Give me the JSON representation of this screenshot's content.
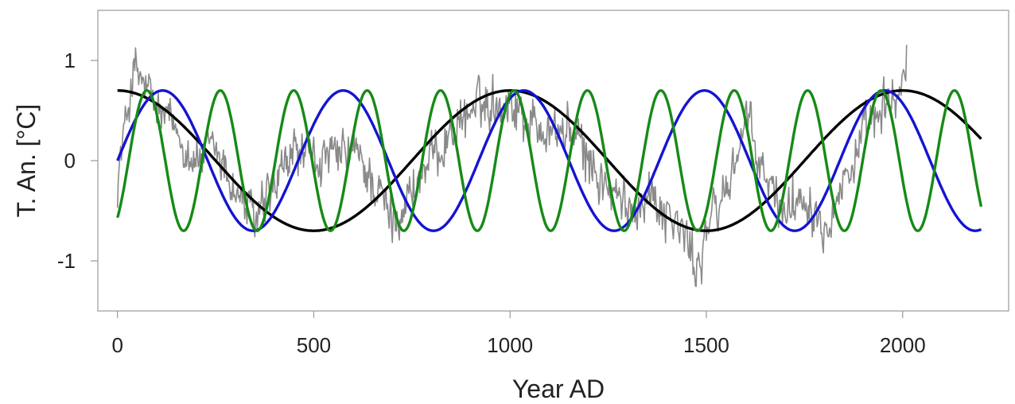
{
  "chart_data": {
    "type": "line",
    "title": "",
    "xlabel": "Year AD",
    "ylabel": "T. An. [°C]",
    "xlim": [
      -50,
      2270
    ],
    "ylim": [
      -1.5,
      1.5
    ],
    "x_ticks": [
      0,
      500,
      1000,
      1500,
      2000
    ],
    "x_tick_labels": [
      "0",
      "500",
      "1000",
      "1500",
      "2000"
    ],
    "y_ticks": [
      1,
      0,
      -1
    ],
    "y_tick_labels": [
      "1",
      "0",
      "-1"
    ],
    "grid": false,
    "legend": "none",
    "colors": {
      "reconstruction": "#8a8a8a",
      "cycle_long": "#000000",
      "cycle_mid": "#1414d2",
      "cycle_short": "#178a17"
    },
    "series": [
      {
        "style": "noisy-line",
        "color": "#8a8a8a",
        "x": [
          0,
          40,
          60,
          100,
          150,
          200,
          250,
          300,
          350,
          400,
          450,
          500,
          550,
          600,
          650,
          700,
          750,
          800,
          850,
          900,
          950,
          1000,
          1050,
          1100,
          1150,
          1200,
          1250,
          1300,
          1350,
          1400,
          1450,
          1475,
          1500,
          1550,
          1600,
          1650,
          1700,
          1750,
          1800,
          1850,
          1900,
          1950,
          1980,
          2010
        ],
        "y": [
          -0.2,
          0.9,
          0.8,
          0.5,
          0.3,
          0.0,
          0.1,
          -0.3,
          -0.6,
          -0.3,
          0.1,
          0.0,
          0.0,
          0.1,
          -0.2,
          -0.6,
          -0.3,
          0.0,
          0.3,
          0.5,
          0.6,
          0.6,
          0.4,
          0.3,
          0.3,
          0.0,
          -0.3,
          -0.5,
          -0.3,
          -0.5,
          -0.8,
          -1.1,
          -0.7,
          -0.3,
          0.4,
          -0.2,
          -0.5,
          -0.3,
          -0.6,
          -0.2,
          0.2,
          0.5,
          0.6,
          0.9
        ]
      },
      {
        "style": "sine",
        "color": "#000000",
        "amplitude": 0.7,
        "period": 1000,
        "peak_year": 0,
        "x_range": [
          0,
          2200
        ]
      },
      {
        "style": "sine",
        "color": "#1414d2",
        "amplitude": 0.7,
        "period": 460,
        "peak_year": 115,
        "x_range": [
          0,
          2200
        ]
      },
      {
        "style": "sine",
        "color": "#178a17",
        "amplitude": 0.7,
        "period": 187,
        "peak_year": 75,
        "x_range": [
          0,
          2200
        ]
      }
    ]
  }
}
